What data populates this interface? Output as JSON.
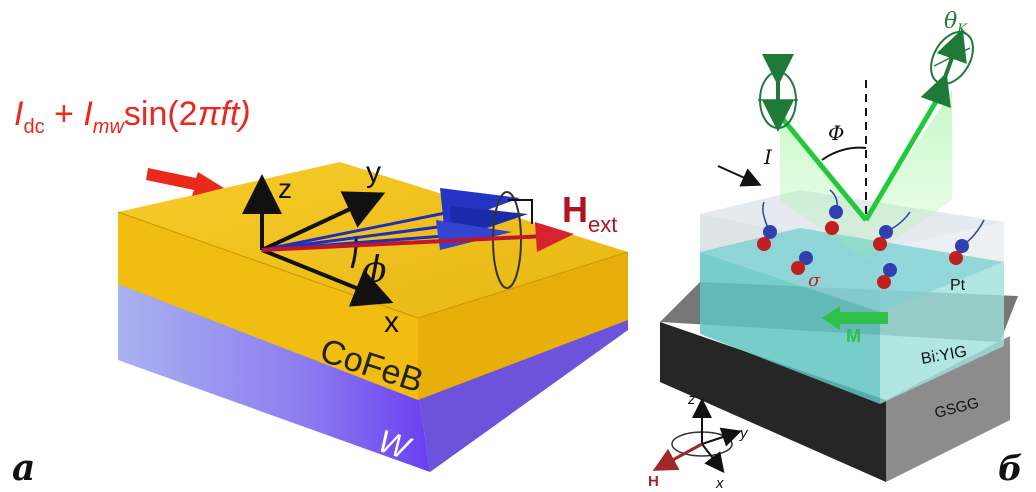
{
  "panel_a": {
    "label": "a",
    "current_formula": {
      "I1": "I",
      "sub1": "dc",
      "plus": " + ",
      "I2": "I",
      "sub2": "mw",
      "func": "sin(2",
      "pi": "π",
      "ft": "ft)"
    },
    "axis_z": "z",
    "axis_y": "y",
    "axis_x": "x",
    "phi": "ϕ",
    "field_main": "H",
    "field_sub": "ext",
    "layer_top": "CoFeB",
    "layer_bottom": "W",
    "colors": {
      "current": "#e8291c",
      "cofeb": "#f2c21a",
      "w_layer": "#7b5cf0",
      "spin": "#1f2fb8",
      "field": "#c0162a"
    }
  },
  "panel_b": {
    "label": "б",
    "theta_main": "θ",
    "theta_sub": "K",
    "Phi": "Φ",
    "current": "I",
    "sigma": "σ",
    "layer_pt": "Pt",
    "magnetization": "M",
    "layer_biyig": "Bi:YIG",
    "layer_gsgg": "GSGG",
    "axis_z": "z",
    "axis_y": "y",
    "axis_x": "x",
    "field": "H",
    "colors": {
      "laser": "#22c93a",
      "pt": "#8fd8d8",
      "substrate": "#2f2f2f",
      "field": "#a0282a"
    }
  }
}
